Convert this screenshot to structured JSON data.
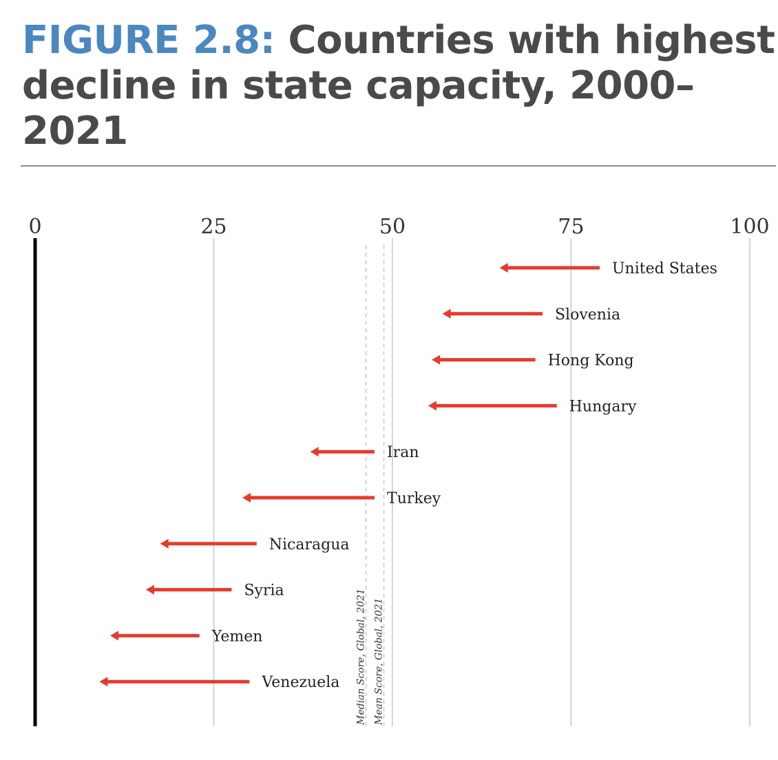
{
  "heading": {
    "figure_label": "FIGURE 2.8:",
    "title_text": "Countries with highest decline in state capacity, 2000–2021"
  },
  "colors": {
    "figure_label": "#4b87c0",
    "title": "#4a4a4a",
    "arrow": "#e53b2c",
    "gridline": "#b9cad6",
    "zero_line": "#000000",
    "reference_line": "#c8c8c8"
  },
  "chart_data": {
    "type": "arrow-dumbbell",
    "title": "Countries with highest decline in state capacity, 2000–2021",
    "xlim": [
      0,
      100
    ],
    "x_ticks": [
      0,
      25,
      50,
      75,
      100
    ],
    "grid": true,
    "series": [
      {
        "country": "United States",
        "start_2000": 79,
        "end_2021": 65
      },
      {
        "country": "Slovenia",
        "start_2000": 71,
        "end_2021": 57
      },
      {
        "country": "Hong Kong",
        "start_2000": 70,
        "end_2021": 55.5
      },
      {
        "country": "Hungary",
        "start_2000": 73,
        "end_2021": 55
      },
      {
        "country": "Iran",
        "start_2000": 47.5,
        "end_2021": 38.5
      },
      {
        "country": "Turkey",
        "start_2000": 47.5,
        "end_2021": 29
      },
      {
        "country": "Nicaragua",
        "start_2000": 31,
        "end_2021": 17.5
      },
      {
        "country": "Syria",
        "start_2000": 27.5,
        "end_2021": 15.5
      },
      {
        "country": "Yemen",
        "start_2000": 23,
        "end_2021": 10.5
      },
      {
        "country": "Venezuela",
        "start_2000": 30,
        "end_2021": 9
      }
    ],
    "reference_lines": [
      {
        "label": "Median Score, Global, 2021",
        "value": 46.3
      },
      {
        "label": "Mean Score, Global, 2021",
        "value": 48.8
      }
    ]
  }
}
